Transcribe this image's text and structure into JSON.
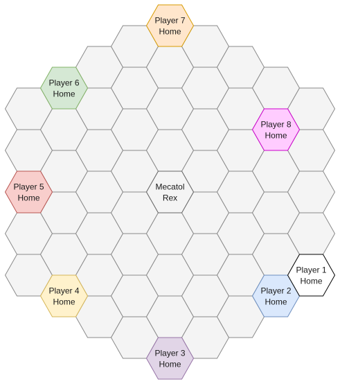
{
  "board": {
    "rings": 4,
    "default_tile": {
      "fill": "#f4f4f4",
      "stroke": "#8a8a8a"
    },
    "special_tiles": [
      {
        "id": "mecatol-rex",
        "q": 0,
        "r": 0,
        "lines": [
          "Mecatol",
          "Rex"
        ],
        "fill": "#f4f4f4",
        "stroke": "#666666",
        "stroke_width": 2
      },
      {
        "id": "player-1-home",
        "q": 4,
        "r": 0,
        "lines": [
          "Player 1",
          "Home"
        ],
        "fill": "#ffffff",
        "stroke": "#000000",
        "stroke_width": 2
      },
      {
        "id": "player-2-home",
        "q": 3,
        "r": 1,
        "lines": [
          "Player 2",
          "Home"
        ],
        "fill": "#dae8fc",
        "stroke": "#6c8ebf",
        "stroke_width": 1.5
      },
      {
        "id": "player-3-home",
        "q": 0,
        "r": 4,
        "lines": [
          "Player 3",
          "Home"
        ],
        "fill": "#e1d5e7",
        "stroke": "#9673a6",
        "stroke_width": 1.5
      },
      {
        "id": "player-4-home",
        "q": -3,
        "r": 4,
        "lines": [
          "Player 4",
          "Home"
        ],
        "fill": "#fff2cc",
        "stroke": "#d6b656",
        "stroke_width": 1.5
      },
      {
        "id": "player-5-home",
        "q": -4,
        "r": 2,
        "lines": [
          "Player 5",
          "Home"
        ],
        "fill": "#f8cecc",
        "stroke": "#b85450",
        "stroke_width": 1.5
      },
      {
        "id": "player-6-home",
        "q": -3,
        "r": -1,
        "lines": [
          "Player 6",
          "Home"
        ],
        "fill": "#d5e8d4",
        "stroke": "#82b366",
        "stroke_width": 1.5
      },
      {
        "id": "player-7-home",
        "q": 0,
        "r": -4,
        "lines": [
          "Player 7",
          "Home"
        ],
        "fill": "#ffe6cc",
        "stroke": "#d79b00",
        "stroke_width": 1.5
      },
      {
        "id": "player-8-home",
        "q": 3,
        "r": -3,
        "lines": [
          "Player 8",
          "Home"
        ],
        "fill": "#ffccff",
        "stroke": "#cc00cc",
        "stroke_width": 1.5
      }
    ]
  }
}
